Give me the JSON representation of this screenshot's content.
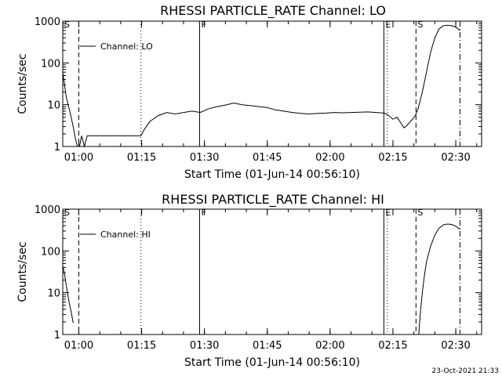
{
  "chart_data": [
    {
      "type": "line",
      "title": "RHESSI PARTICLE_RATE Channel: LO",
      "xlabel": "Start Time (01-Jun-14 00:56:10)",
      "ylabel": "Counts/sec",
      "yscale": "log",
      "ylim": [
        1,
        1000
      ],
      "xlim_minutes": [
        0,
        100
      ],
      "x_tick_labels": [
        "01:00",
        "01:15",
        "01:30",
        "01:45",
        "02:00",
        "02:15",
        "02:30"
      ],
      "y_tick_labels": [
        "1",
        "10",
        "100",
        "1000"
      ],
      "legend": "Channel: LO",
      "markers": [
        {
          "label": "S",
          "time": "00:56:10",
          "style": "solid"
        },
        {
          "label": "",
          "time": "01:00:00",
          "style": "dashed"
        },
        {
          "label": "",
          "time": "01:14:50",
          "style": "dotted"
        },
        {
          "label": "F",
          "time": "01:28:50",
          "style": "solid"
        },
        {
          "label": "E",
          "time": "02:12:50",
          "style": "solid"
        },
        {
          "label": "",
          "time": "02:13:40",
          "style": "dotted"
        },
        {
          "label": "S",
          "time": "02:20:30",
          "style": "dashed"
        },
        {
          "label": "",
          "time": "02:31:00",
          "style": "dashdot"
        }
      ],
      "series": [
        {
          "name": "Channel: LO",
          "segments": [
            {
              "x": [
                "00:56:10",
                "00:57:00",
                "00:58:00",
                "00:58:40",
                "00:59:10",
                "00:59:40",
                "01:00:10",
                "01:00:40",
                "01:01:20",
                "01:02:00",
                "01:03:00",
                "01:04:00",
                "01:05:00",
                "01:06:00",
                "01:07:00",
                "01:08:00",
                "01:09:00",
                "01:10:00",
                "01:11:00",
                "01:12:00",
                "01:13:00",
                "01:14:00",
                "01:14:50"
              ],
              "y": [
                60,
                15,
                6,
                3,
                1.6,
                1,
                1,
                1.8,
                1,
                1.8,
                1.8,
                1.8,
                1.8,
                1.8,
                1.8,
                1.8,
                1.8,
                1.8,
                1.8,
                1.8,
                1.8,
                1.8,
                1.8
              ]
            },
            {
              "x": [
                "01:14:50",
                "01:15:40",
                "01:17:00",
                "01:19:00",
                "01:21:00",
                "01:23:00",
                "01:25:00",
                "01:27:00",
                "01:29:00",
                "01:31:00",
                "01:33:00",
                "01:35:00",
                "01:37:00",
                "01:39:00",
                "01:41:00",
                "01:43:00",
                "01:45:00",
                "01:47:00",
                "01:49:00",
                "01:51:00",
                "01:53:00",
                "01:55:00",
                "01:57:00",
                "01:59:00",
                "02:01:00",
                "02:03:00",
                "02:05:00",
                "02:07:00",
                "02:09:00",
                "02:11:00",
                "02:13:00",
                "02:14:00",
                "02:15:00",
                "02:16:00",
                "02:17:00",
                "02:17:40",
                "02:18:20",
                "02:19:00",
                "02:19:40",
                "02:20:20",
                "02:21:00",
                "02:22:00",
                "02:23:00",
                "02:24:00",
                "02:25:00",
                "02:26:00",
                "02:27:00",
                "02:28:00",
                "02:29:00",
                "02:30:00",
                "02:31:00"
              ],
              "y": [
                1.8,
                2.6,
                4,
                5.5,
                6.5,
                6,
                6.5,
                7,
                6.5,
                8,
                9,
                9.8,
                11,
                10,
                9.5,
                9,
                8.5,
                7.5,
                7,
                6.5,
                6.2,
                6,
                6.2,
                6.3,
                6.5,
                6.4,
                6.5,
                6.6,
                6.7,
                6.5,
                6.3,
                5.5,
                4.5,
                5,
                3.5,
                2.8,
                3.2,
                3.8,
                4.5,
                5.5,
                8,
                20,
                60,
                180,
                400,
                650,
                780,
                800,
                780,
                720,
                600
              ]
            }
          ]
        }
      ]
    },
    {
      "type": "line",
      "title": "RHESSI PARTICLE_RATE Channel: HI",
      "xlabel": "Start Time (01-Jun-14 00:56:10)",
      "ylabel": "Counts/sec",
      "yscale": "log",
      "ylim": [
        1,
        1000
      ],
      "xlim_minutes": [
        0,
        100
      ],
      "x_tick_labels": [
        "01:00",
        "01:15",
        "01:30",
        "01:45",
        "02:00",
        "02:15",
        "02:30"
      ],
      "y_tick_labels": [
        "1",
        "10",
        "100",
        "1000"
      ],
      "legend": "Channel: HI",
      "markers": [
        {
          "label": "S",
          "time": "00:56:10",
          "style": "solid"
        },
        {
          "label": "",
          "time": "01:00:00",
          "style": "dashed"
        },
        {
          "label": "",
          "time": "01:14:50",
          "style": "dotted"
        },
        {
          "label": "F",
          "time": "01:28:50",
          "style": "solid"
        },
        {
          "label": "E",
          "time": "02:12:50",
          "style": "solid"
        },
        {
          "label": "",
          "time": "02:13:40",
          "style": "dotted"
        },
        {
          "label": "S",
          "time": "02:20:30",
          "style": "dashed"
        },
        {
          "label": "",
          "time": "02:31:00",
          "style": "dashdot"
        }
      ],
      "series": [
        {
          "name": "Channel: HI",
          "segments": [
            {
              "x": [
                "00:56:10",
                "00:56:40",
                "00:57:10",
                "00:57:40",
                "00:58:10",
                "00:58:40"
              ],
              "y": [
                45,
                25,
                12,
                6,
                3.5,
                1.9
              ]
            },
            {
              "x": [
                "02:21:10",
                "02:21:30",
                "02:22:00",
                "02:22:30",
                "02:23:00",
                "02:24:00",
                "02:25:00",
                "02:26:00",
                "02:27:00",
                "02:28:00",
                "02:29:00",
                "02:30:00",
                "02:31:00"
              ],
              "y": [
                1,
                3,
                10,
                25,
                55,
                130,
                240,
                350,
                420,
                440,
                430,
                390,
                330
              ]
            }
          ]
        }
      ]
    }
  ],
  "footer_timestamp": "23-Oct-2021 21:33"
}
